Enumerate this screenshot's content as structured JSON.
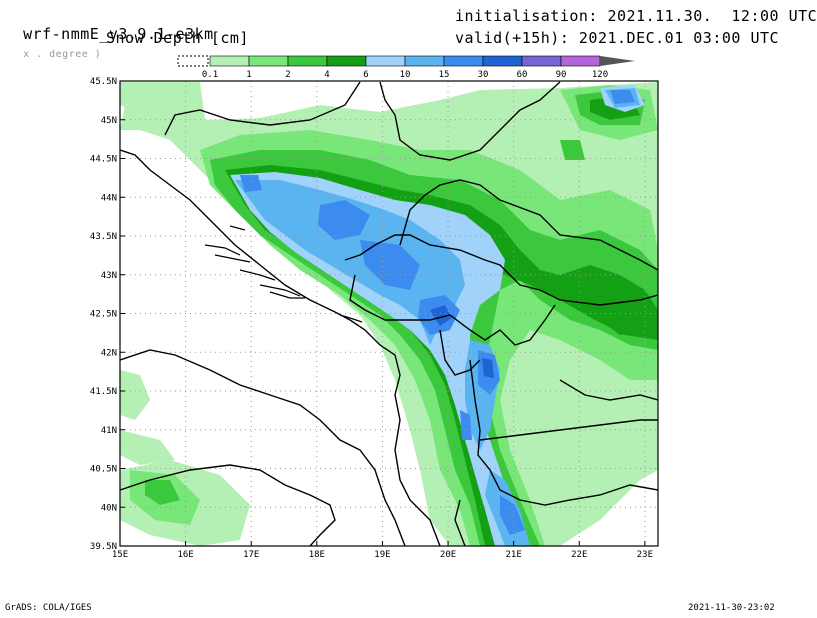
{
  "header": {
    "model": "wrf-nmmE_v3.9.1-e3km",
    "model_sub": "x . degree )",
    "field": "Snow Depth [cm]",
    "init": "initialisation: 2021.11.30.  12:00 UTC",
    "valid": "valid(+15h): 2021.DEC.01 03:00 UTC"
  },
  "legend": {
    "levels": [
      "0.1",
      "1",
      "2",
      "4",
      "6",
      "10",
      "15",
      "30",
      "60",
      "90",
      "120"
    ],
    "colors": [
      "#b4f0b4",
      "#78e678",
      "#3cc83c",
      "#14a014",
      "#a0d2fa",
      "#5ab4f0",
      "#3c8cf0",
      "#1e64d2",
      "#7864d2",
      "#b464dc"
    ],
    "arrow_color": "#555555"
  },
  "map": {
    "lon_ticks": [
      "15E",
      "16E",
      "17E",
      "18E",
      "19E",
      "20E",
      "21E",
      "22E",
      "23E"
    ],
    "lat_ticks": [
      "45.5N",
      "45N",
      "44.5N",
      "44N",
      "43.5N",
      "43N",
      "42.5N",
      "42N",
      "41.5N",
      "41N",
      "40.5N",
      "40N",
      "39.5N"
    ],
    "lon_range": [
      15,
      23.2
    ],
    "lat_range": [
      39.5,
      45.5
    ]
  },
  "footer": {
    "left": "GrADS: COLA/IGES",
    "right": "2021-11-30-23:02"
  }
}
